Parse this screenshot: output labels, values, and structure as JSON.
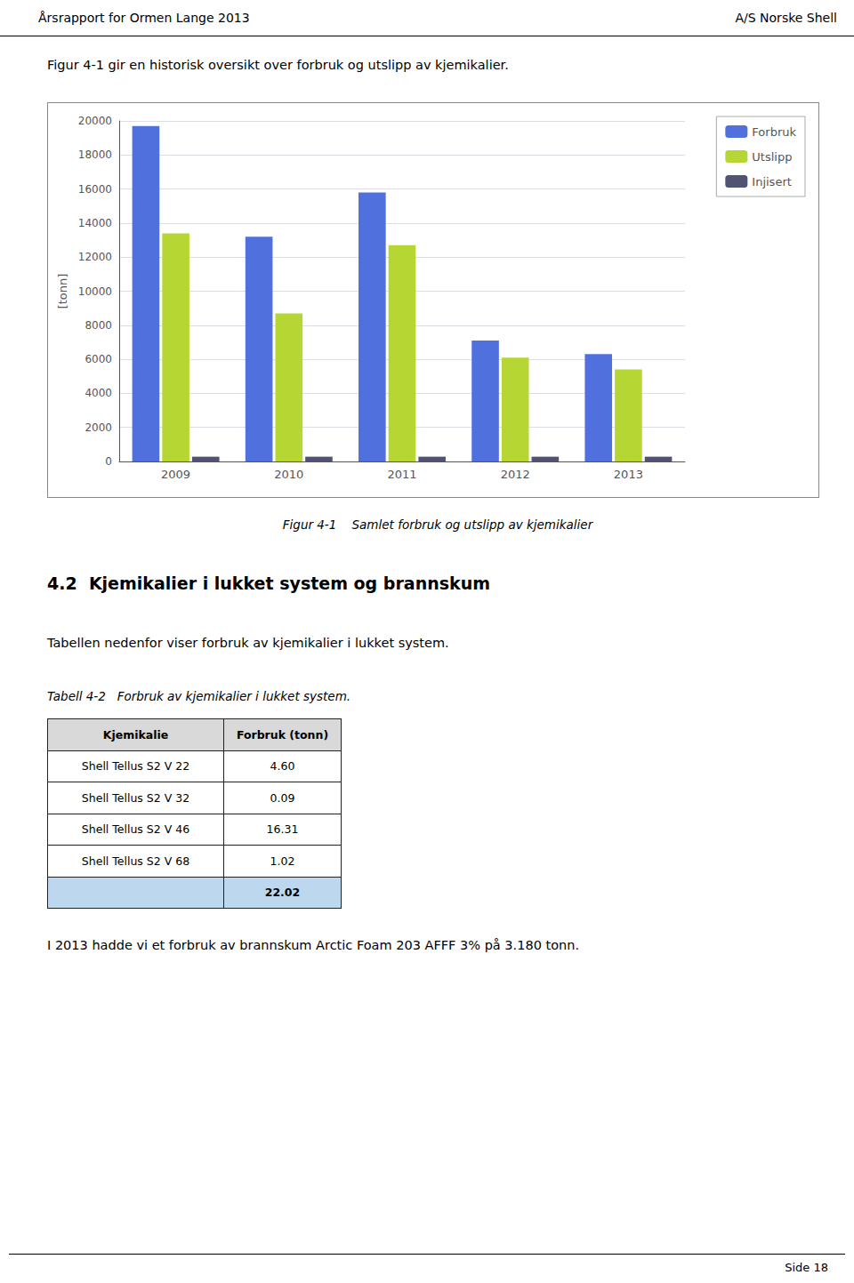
{
  "header_left": "Årsrapport for Ormen Lange 2013",
  "header_right": "A/S Norske Shell",
  "intro_text": "Figur 4-1 gir en historisk oversikt over forbruk og utslipp av kjemikalier.",
  "chart_data": {
    "type": "bar",
    "title": "Figur 4-1    Samlet forbruk og utslipp av kjemikalier",
    "categories": [
      2009,
      2010,
      2011,
      2012,
      2013
    ],
    "series": [
      {
        "name": "Forbruk",
        "values": [
          19700,
          13200,
          15800,
          7100,
          6300
        ]
      },
      {
        "name": "Utslipp",
        "values": [
          13400,
          8700,
          12700,
          6100,
          5400
        ]
      },
      {
        "name": "Injisert",
        "values": [
          280,
          280,
          280,
          280,
          280
        ]
      }
    ],
    "ylabel": "[tonn]",
    "ylim": [
      0,
      20000
    ],
    "yticks": [
      0,
      2000,
      4000,
      6000,
      8000,
      10000,
      12000,
      14000,
      16000,
      18000,
      20000
    ],
    "grid": true,
    "legend": "upper right"
  },
  "section_title": "4.2  Kjemikalier i lukket system og brannskum",
  "section_intro": "Tabellen nedenfor viser forbruk av kjemikalier i lukket system.",
  "table_caption": "Tabell 4-2   Forbruk av kjemikalier i lukket system.",
  "table_headers": [
    "Kjemikalie",
    "Forbruk (tonn)"
  ],
  "table_rows": [
    [
      "Shell Tellus S2 V 22",
      "4.60"
    ],
    [
      "Shell Tellus S2 V 32",
      "0.09"
    ],
    [
      "Shell Tellus S2 V 46",
      "16.31"
    ],
    [
      "Shell Tellus S2 V 68",
      "1.02"
    ]
  ],
  "table_total": "22.02",
  "footer_text": "I 2013 hadde vi et forbruk av brannskum Arctic Foam 203 AFFF 3% på 3.180 tonn.",
  "page_number": "Side 18"
}
